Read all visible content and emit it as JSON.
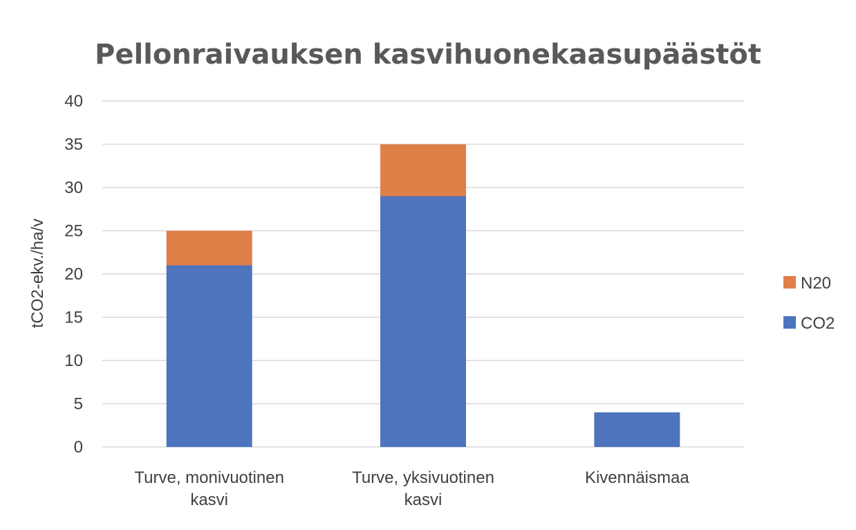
{
  "chart_data": {
    "type": "bar",
    "stacked": true,
    "title": "Pellonraivauksen kasvihuonekaasupäästöt",
    "xlabel": "",
    "ylabel": "tCO2-ekv./ha/v",
    "ylim": [
      0,
      40
    ],
    "yticks": [
      0,
      5,
      10,
      15,
      20,
      25,
      30,
      35,
      40
    ],
    "grid": true,
    "legend_position": "right",
    "categories": [
      [
        "Turve, monivuotinen",
        "kasvi"
      ],
      [
        "Turve, yksivuotinen",
        "kasvi"
      ],
      [
        "Kivennäismaa"
      ]
    ],
    "series": [
      {
        "name": "CO2",
        "values": [
          21,
          29,
          4
        ],
        "color": "#4e74be"
      },
      {
        "name": "N20",
        "values": [
          4,
          6,
          0
        ],
        "color": "#de8048"
      }
    ],
    "legend_order": [
      "N20",
      "CO2"
    ]
  }
}
